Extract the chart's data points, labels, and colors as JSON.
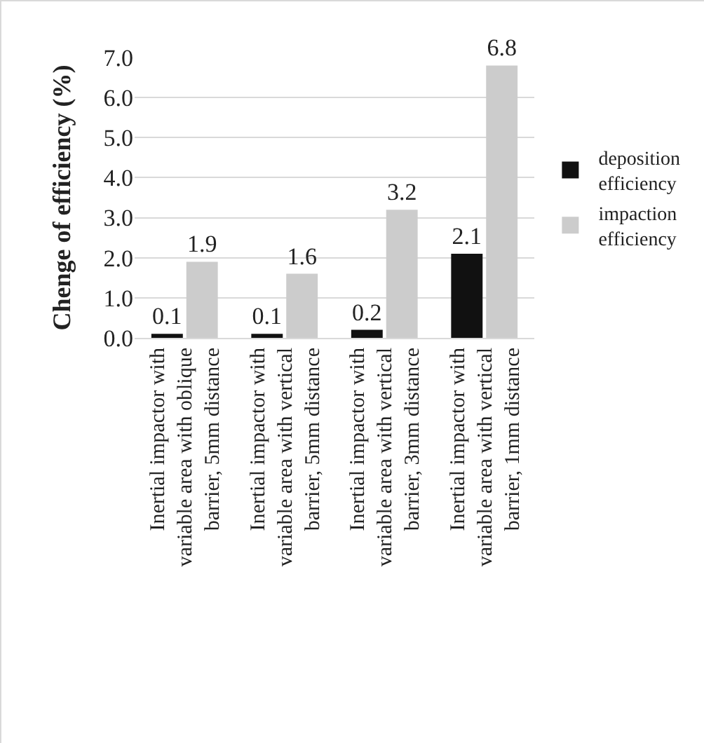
{
  "chart_data": {
    "type": "bar",
    "ylabel": "Chenge of efficiency (%)",
    "categories": [
      "Inertial impactor with variable area with oblique barrier, 5mm distance",
      "Inertial impactor with variable area with vertical barrier, 5mm distance",
      "Inertial impactor with variable area with vertical barrier, 3mm distance",
      "Inertial impactor with variable area with vertical barrier, 1mm distance"
    ],
    "series": [
      {
        "name": "deposition efficiency",
        "color": "#111111",
        "values": [
          0.1,
          0.1,
          0.2,
          2.1
        ]
      },
      {
        "name": "impaction efficiency",
        "color": "#cccccc",
        "values": [
          1.9,
          1.6,
          3.2,
          6.8
        ]
      }
    ],
    "ylim": [
      0,
      7
    ],
    "yticks": [
      {
        "value": 0,
        "label": "0.0"
      },
      {
        "value": 1,
        "label": "1.0"
      },
      {
        "value": 2,
        "label": "2.0"
      },
      {
        "value": 3,
        "label": "3.0"
      },
      {
        "value": 4,
        "label": "4.0"
      },
      {
        "value": 5,
        "label": "5.0"
      },
      {
        "value": 6,
        "label": "6.0"
      },
      {
        "value": 7,
        "label": "7.0"
      }
    ],
    "grid": "y",
    "legend": "right",
    "data_labels": true
  }
}
